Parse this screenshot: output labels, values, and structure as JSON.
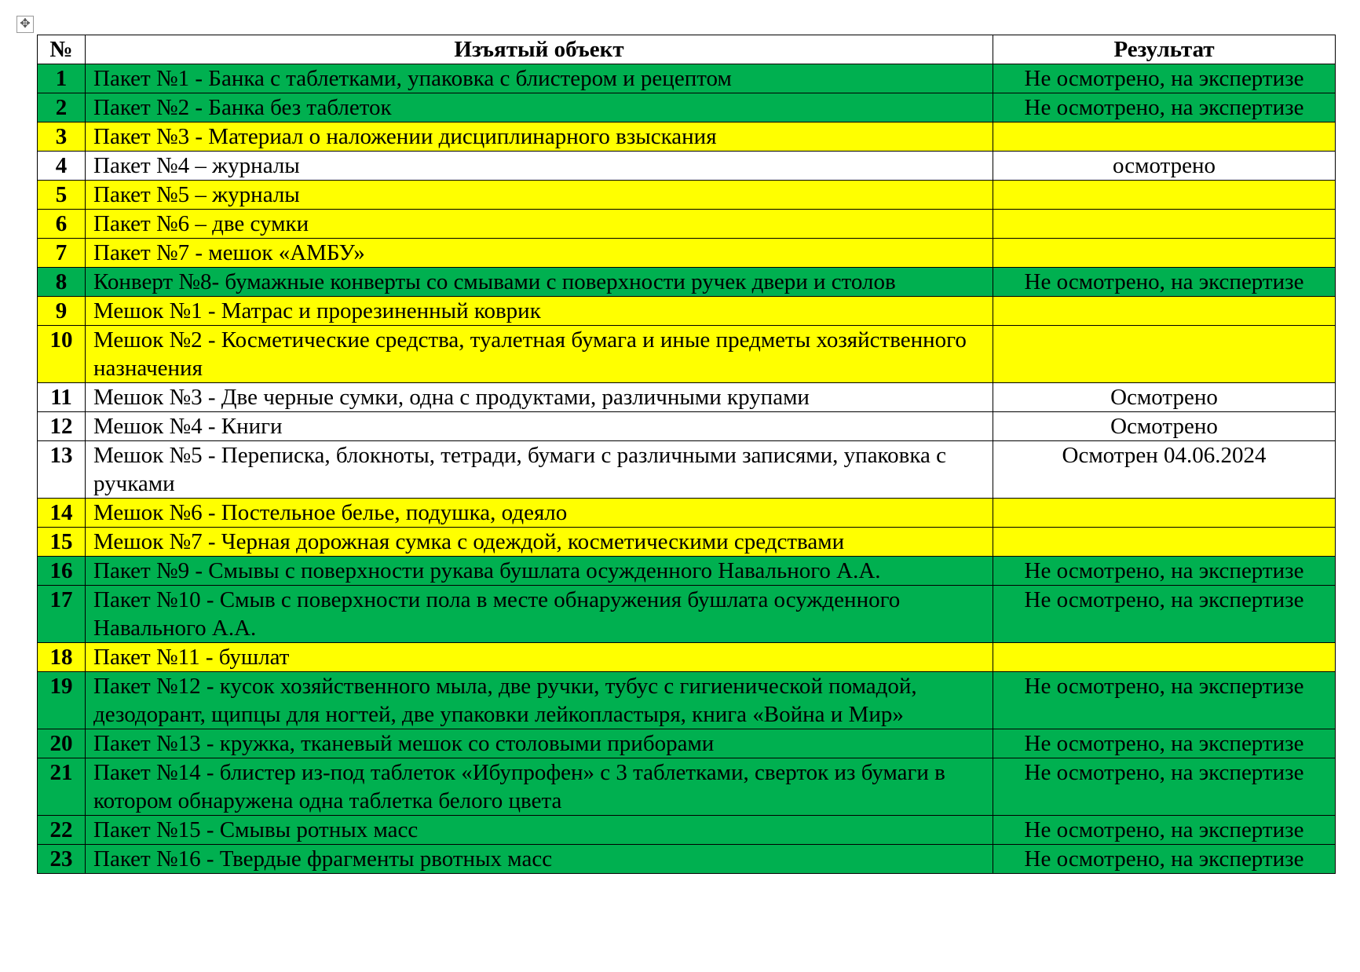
{
  "colors": {
    "green": "#00b050",
    "yellow": "#ffff00",
    "white": "#ffffff"
  },
  "table_handle_icon": "move-cross-icon",
  "table": {
    "headers": [
      "№",
      "Изъятый объект",
      "Результат"
    ],
    "rows": [
      {
        "num": "1",
        "object": "Пакет №1 - Банка с таблетками, упаковка с блистером и рецептом",
        "result": "Не осмотрено, на экспертизе",
        "color": "green"
      },
      {
        "num": "2",
        "object": "Пакет №2 - Банка без таблеток",
        "result": "Не осмотрено, на экспертизе",
        "color": "green"
      },
      {
        "num": "3",
        "object": "Пакет №3 - Материал о наложении дисциплинарного взыскания",
        "result": "",
        "color": "yellow"
      },
      {
        "num": "4",
        "object": "Пакет №4 – журналы",
        "result": "осмотрено",
        "color": "white"
      },
      {
        "num": "5",
        "object": "Пакет №5 – журналы",
        "result": "",
        "color": "yellow"
      },
      {
        "num": "6",
        "object": "Пакет №6 – две сумки",
        "result": "",
        "color": "yellow"
      },
      {
        "num": "7",
        "object": "Пакет №7 - мешок «АМБУ»",
        "result": "",
        "color": "yellow"
      },
      {
        "num": "8",
        "object": "Конверт №8- бумажные конверты со смывами с поверхности ручек двери и столов",
        "result": "Не осмотрено, на экспертизе",
        "color": "green"
      },
      {
        "num": "9",
        "object": "Мешок №1 - Матрас и прорезиненный коврик",
        "result": "",
        "color": "yellow"
      },
      {
        "num": "10",
        "object": "Мешок №2 - Косметические средства, туалетная бумага и иные предметы хозяйственного назначения",
        "result": "",
        "color": "yellow"
      },
      {
        "num": "11",
        "object": "Мешок №3 - Две черные сумки, одна с продуктами, различными крупами",
        "result": "Осмотрено",
        "color": "white"
      },
      {
        "num": "12",
        "object": "Мешок №4 - Книги",
        "result": "Осмотрено",
        "color": "white"
      },
      {
        "num": "13",
        "object": "Мешок №5 - Переписка, блокноты, тетради, бумаги с различными записями, упаковка с ручками",
        "result": "Осмотрен 04.06.2024",
        "color": "white"
      },
      {
        "num": "14",
        "object": "Мешок №6 - Постельное белье, подушка, одеяло",
        "result": "",
        "color": "yellow"
      },
      {
        "num": "15",
        "object": "Мешок №7 - Черная дорожная сумка с одеждой, косметическими средствами",
        "result": "",
        "color": "yellow"
      },
      {
        "num": "16",
        "object": "Пакет №9 - Смывы с поверхности рукава бушлата осужденного Навального А.А.",
        "result": "Не осмотрено, на экспертизе",
        "color": "green"
      },
      {
        "num": "17",
        "object": "Пакет №10 - Смыв с поверхности пола в месте обнаружения бушлата осужденного Навального А.А.",
        "result": "Не осмотрено, на экспертизе",
        "color": "green"
      },
      {
        "num": "18",
        "object": "Пакет №11 - бушлат",
        "result": "",
        "color": "yellow"
      },
      {
        "num": "19",
        "object": "Пакет №12 - кусок хозяйственного мыла, две ручки, тубус с гигиенической помадой, дезодорант, щипцы для ногтей, две упаковки лейкопластыря, книга «Война и Мир»",
        "result": "Не осмотрено, на экспертизе",
        "color": "green"
      },
      {
        "num": "20",
        "object": "Пакет №13 - кружка, тканевый мешок со столовыми приборами",
        "result": "Не осмотрено, на экспертизе",
        "color": "green"
      },
      {
        "num": "21",
        "object": "Пакет №14 - блистер из-под таблеток «Ибупрофен» с 3 таблетками, сверток из бумаги в котором обнаружена одна таблетка белого цвета",
        "result": "Не осмотрено, на экспертизе",
        "color": "green"
      },
      {
        "num": "22",
        "object": "Пакет №15 - Смывы ротных масс",
        "result": "Не осмотрено, на экспертизе",
        "color": "green"
      },
      {
        "num": "23",
        "object": "Пакет №16 - Твердые фрагменты рвотных масс",
        "result": "Не осмотрено, на экспертизе",
        "color": "green"
      }
    ]
  }
}
